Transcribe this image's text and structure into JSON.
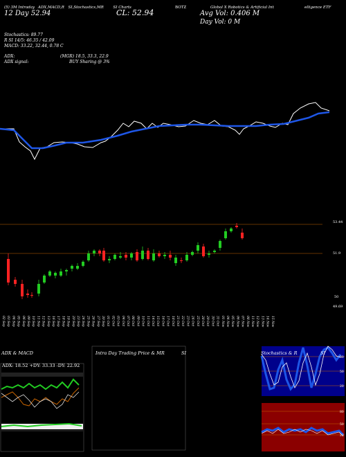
{
  "header": {
    "line1": [
      "(5) 3M Intraday",
      "ADX,MACD,R",
      "SI,Stochastics,MR",
      "SI Charts",
      "BOTZ",
      "Global X Robotics & Artificial Int",
      "elligence ETF"
    ],
    "price_left": "12 Day  52.94",
    "close_label": "CL: 52.94",
    "avg_vol": "Avg Vol: 0.406 M",
    "day_vol": "Day Vol: 0  M"
  },
  "indicators": {
    "stochastics": "Stochastics: 89.77",
    "rsi": "R   SI 14/5: 46.35 / 42.09",
    "macd": "MACD: 33.22, 32.44, 0.78  C",
    "adx": "ADX:",
    "mgr": "(MGR) 18.5, 33.3, 22.9",
    "adx_signal": "ADX  signal:",
    "buy": "BUY Sharing @ 3%"
  },
  "candle_chart": {
    "price_labels": [
      "53.44",
      "51.9",
      "50",
      "49.69"
    ],
    "dates": [
      "02 Sep",
      "03 Sep",
      "04 Sep",
      "05 Sep",
      "06 Sep",
      "09 Sep",
      "10 Sep",
      "11 Sep",
      "12 Sep",
      "13 Sep",
      "16 Sep",
      "17 Sep",
      "18 Sep",
      "19 Sep",
      "20 Sep",
      "23 Sep",
      "24 Sep",
      "25 Sep",
      "26 Sep",
      "27 Sep",
      "30 Sep",
      "01 Oct",
      "02 Oct",
      "03 Oct",
      "04 Oct",
      "07 Oct",
      "08 Oct",
      "09 Oct",
      "10 Oct",
      "11 Oct",
      "14 Oct",
      "15 Oct",
      "16 Oct",
      "17 Oct",
      "18 Oct",
      "21 Oct",
      "22 Oct",
      "23 Oct",
      "24 Oct",
      "25 Oct",
      "28 Oct",
      "29 Oct",
      "30 Oct",
      "31 Oct",
      "01 Nov",
      "04 Nov",
      "05 Nov",
      "06 Nov",
      "07 Nov",
      "08 Nov",
      "11 Nov",
      "12 Nov",
      "13 Nov",
      "14 Nov",
      "15 Nov"
    ]
  },
  "panels": {
    "adx_title": "ADX  & MACD",
    "adx_stats": "ADX: 18.52  +DY: 33.33  -DY: 22.92",
    "intra_title": "Intra  Day Trading Price  & MR",
    "intra_title2": "SI",
    "stoch_title": "Stochastics & R",
    "stoch_title2": "SI",
    "stoch_levels": [
      "80",
      "50",
      "20"
    ],
    "rsi_levels": [
      "80",
      "50",
      "20"
    ]
  },
  "colors": {
    "bg": "#000000",
    "ma_line": "#1e56e6",
    "up": "#22cc22",
    "down": "#ff2222",
    "rsi_fill": "#8b0000",
    "stoch_fill": "#00008b",
    "grid_orange": "#c86400"
  }
}
